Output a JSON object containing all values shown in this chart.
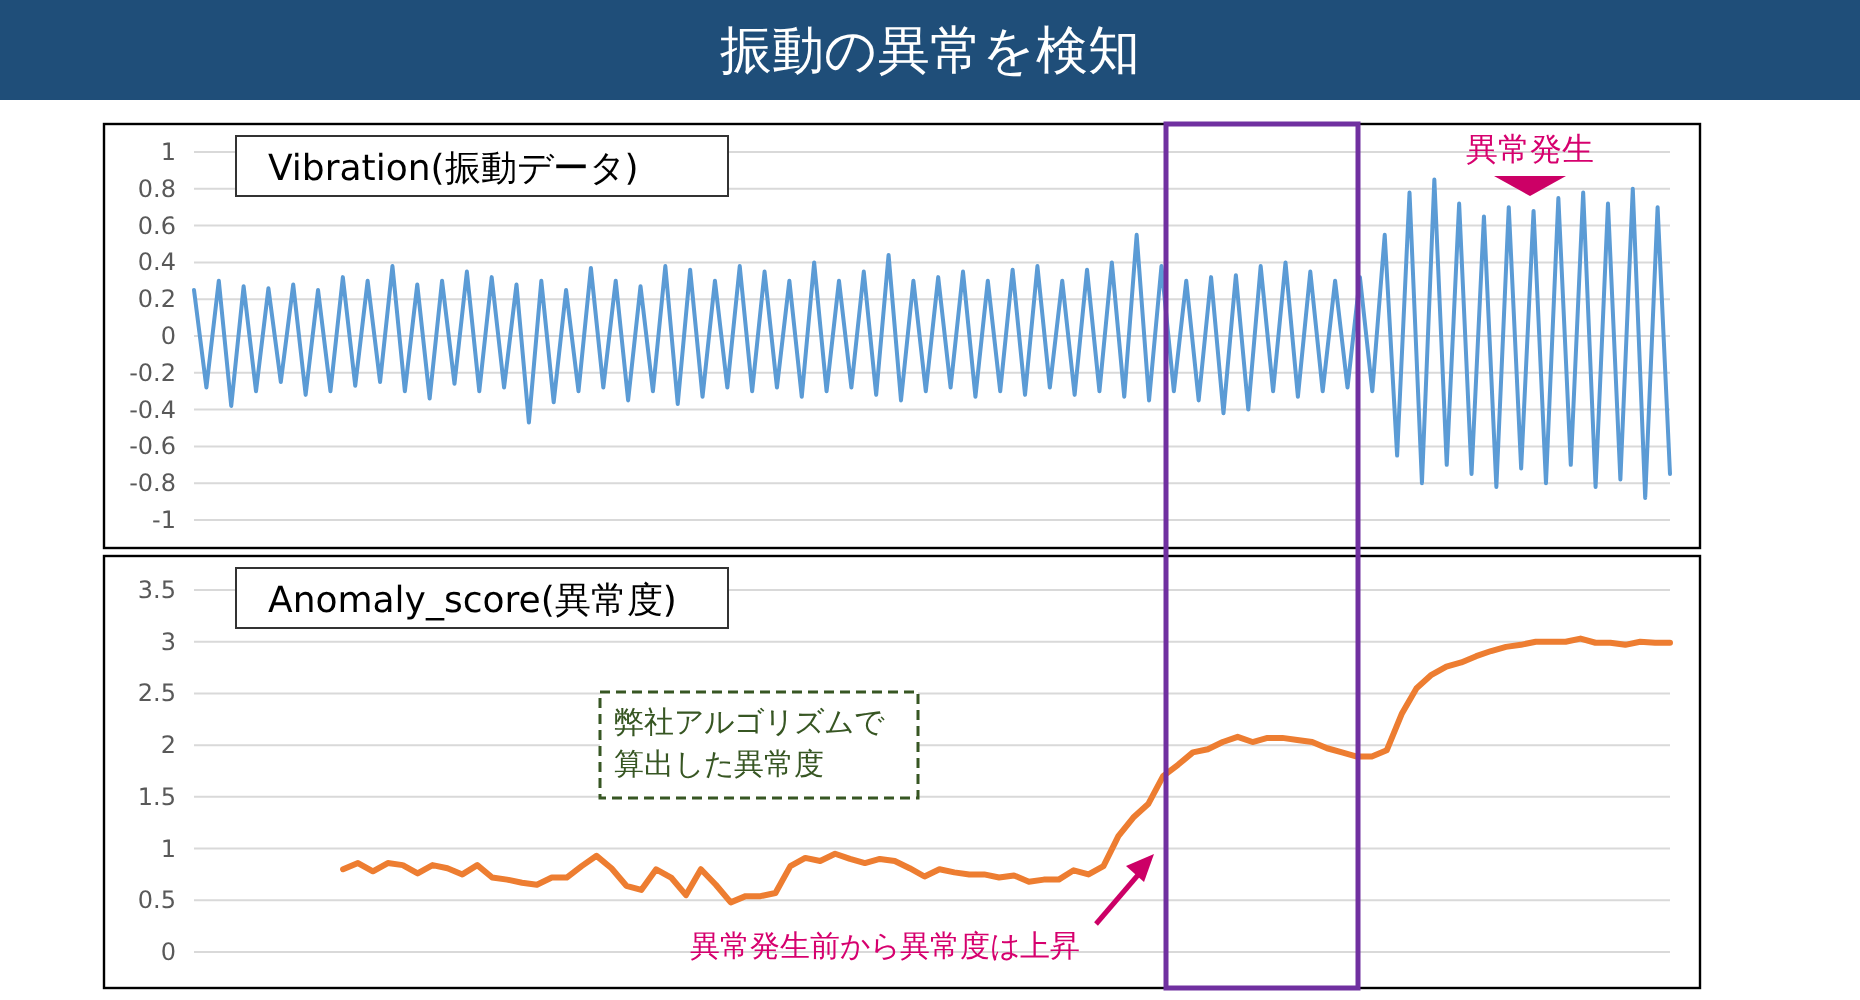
{
  "chart_data": [
    {
      "type": "other",
      "title": "振動の異常を検知"
    },
    {
      "type": "line",
      "title": "Vibration(振動データ)",
      "annotations": [
        "異常発生"
      ],
      "ylim": [
        -1,
        1
      ],
      "yticks": [
        -1,
        -0.8,
        -0.6,
        -0.4,
        -0.2,
        0,
        0.2,
        0.4,
        0.6,
        0.8,
        1
      ],
      "grid": "y",
      "categories": [
        null,
        null,
        null,
        null,
        null,
        null,
        null,
        null,
        null,
        null,
        null,
        null,
        null,
        null,
        null,
        null,
        null,
        null,
        null,
        null,
        null,
        null,
        null,
        null,
        null,
        null,
        null,
        null,
        null,
        null,
        null,
        null,
        null,
        null,
        null,
        null,
        null,
        null,
        null,
        null,
        null,
        null,
        null,
        null,
        null,
        null,
        null,
        null,
        null,
        null,
        null,
        null,
        null,
        null,
        null,
        null,
        null,
        null,
        null,
        null,
        null,
        null,
        null,
        null,
        null,
        null,
        null,
        null,
        null,
        null,
        null,
        null,
        null,
        null,
        null,
        null,
        null,
        null,
        null,
        null,
        null,
        null,
        null,
        null,
        null,
        null,
        null,
        null,
        null,
        null,
        null,
        null,
        null,
        null,
        null,
        null,
        null,
        null,
        null,
        null,
        null,
        null,
        null,
        null,
        null,
        null,
        null,
        null,
        null,
        null,
        null,
        null,
        null,
        null,
        null,
        null,
        null,
        null,
        null,
        null
      ],
      "series": [
        {
          "color": "#5b9bd5",
          "values": [
            0.25,
            -0.28,
            0.3,
            -0.38,
            0.27,
            -0.3,
            0.26,
            -0.25,
            0.28,
            -0.32,
            0.25,
            -0.3,
            0.32,
            -0.27,
            0.3,
            -0.25,
            0.38,
            -0.3,
            0.28,
            -0.34,
            0.3,
            -0.26,
            0.35,
            -0.3,
            0.32,
            -0.28,
            0.28,
            -0.47,
            0.3,
            -0.36,
            0.25,
            -0.3,
            0.37,
            -0.28,
            0.3,
            -0.35,
            0.27,
            -0.3,
            0.38,
            -0.37,
            0.36,
            -0.33,
            0.3,
            -0.28,
            0.38,
            -0.3,
            0.35,
            -0.28,
            0.3,
            -0.33,
            0.4,
            -0.3,
            0.3,
            -0.28,
            0.35,
            -0.32,
            0.44,
            -0.35,
            0.3,
            -0.3,
            0.32,
            -0.28,
            0.35,
            -0.33,
            0.3,
            -0.3,
            0.36,
            -0.32,
            0.38,
            -0.28,
            0.3,
            -0.32,
            0.36,
            -0.3,
            0.4,
            -0.33,
            0.55,
            -0.35,
            0.38,
            -0.3,
            0.3,
            -0.35,
            0.32,
            -0.42,
            0.33,
            -0.4,
            0.38,
            -0.3,
            0.4,
            -0.33,
            0.35,
            -0.3,
            0.3,
            -0.28,
            0.32,
            -0.3,
            0.55,
            -0.65,
            0.78,
            -0.8,
            0.85,
            -0.7,
            0.72,
            -0.75,
            0.65,
            -0.82,
            0.7,
            -0.72,
            0.68,
            -0.8,
            0.75,
            -0.7,
            0.78,
            -0.82,
            0.72,
            -0.78,
            0.8,
            -0.88,
            0.7,
            -0.75
          ]
        }
      ]
    },
    {
      "type": "line",
      "title": "Anomaly_score(異常度)",
      "annotations": [
        "弊社アルゴリズムで",
        "算出した異常度",
        "異常発生前から異常度は上昇"
      ],
      "ylim": [
        0,
        3.5
      ],
      "yticks": [
        0,
        0.5,
        1,
        1.5,
        2,
        2.5,
        3,
        3.5
      ],
      "grid": "y",
      "categories": [
        null,
        null,
        null,
        null,
        null,
        null,
        null,
        null,
        null,
        null,
        null,
        null,
        null,
        null,
        null,
        null,
        null,
        null,
        null,
        null,
        null,
        null,
        null,
        null,
        null,
        null,
        null,
        null,
        null,
        null,
        null,
        null,
        null,
        null,
        null,
        null,
        null,
        null,
        null,
        null,
        null,
        null,
        null,
        null,
        null,
        null,
        null,
        null,
        null,
        null,
        null,
        null,
        null,
        null,
        null,
        null,
        null,
        null,
        null,
        null,
        null,
        null,
        null,
        null,
        null,
        null,
        null,
        null,
        null,
        null,
        null,
        null,
        null,
        null,
        null,
        null,
        null,
        null,
        null,
        null,
        null,
        null,
        null,
        null,
        null,
        null,
        null,
        null,
        null,
        null,
        null,
        null,
        null,
        null,
        null,
        null,
        null,
        null,
        null,
        null
      ],
      "series": [
        {
          "color": "#ed7d31",
          "values": [
            null,
            null,
            null,
            null,
            null,
            null,
            null,
            null,
            null,
            null,
            0.8,
            0.86,
            0.78,
            0.86,
            0.84,
            0.76,
            0.84,
            0.81,
            0.75,
            0.84,
            0.72,
            0.7,
            0.67,
            0.65,
            0.72,
            0.72,
            0.83,
            0.93,
            0.81,
            0.64,
            0.6,
            0.8,
            0.72,
            0.55,
            0.8,
            0.65,
            0.48,
            0.54,
            0.54,
            0.57,
            0.83,
            0.91,
            0.88,
            0.95,
            0.9,
            0.86,
            0.9,
            0.88,
            0.81,
            0.73,
            0.8,
            0.77,
            0.75,
            0.75,
            0.72,
            0.74,
            0.68,
            0.7,
            0.7,
            0.79,
            0.75,
            0.83,
            1.12,
            1.3,
            1.43,
            1.7,
            1.81,
            1.93,
            1.96,
            2.03,
            2.08,
            2.03,
            2.07,
            2.07,
            2.05,
            2.03,
            1.97,
            1.93,
            1.89,
            1.89,
            1.95,
            2.3,
            2.55,
            2.68,
            2.76,
            2.8,
            2.86,
            2.91,
            2.95,
            2.97,
            3.0,
            3.0,
            3.0,
            3.03,
            2.99,
            2.99,
            2.97,
            3.0,
            2.99,
            2.99
          ]
        }
      ]
    }
  ]
}
